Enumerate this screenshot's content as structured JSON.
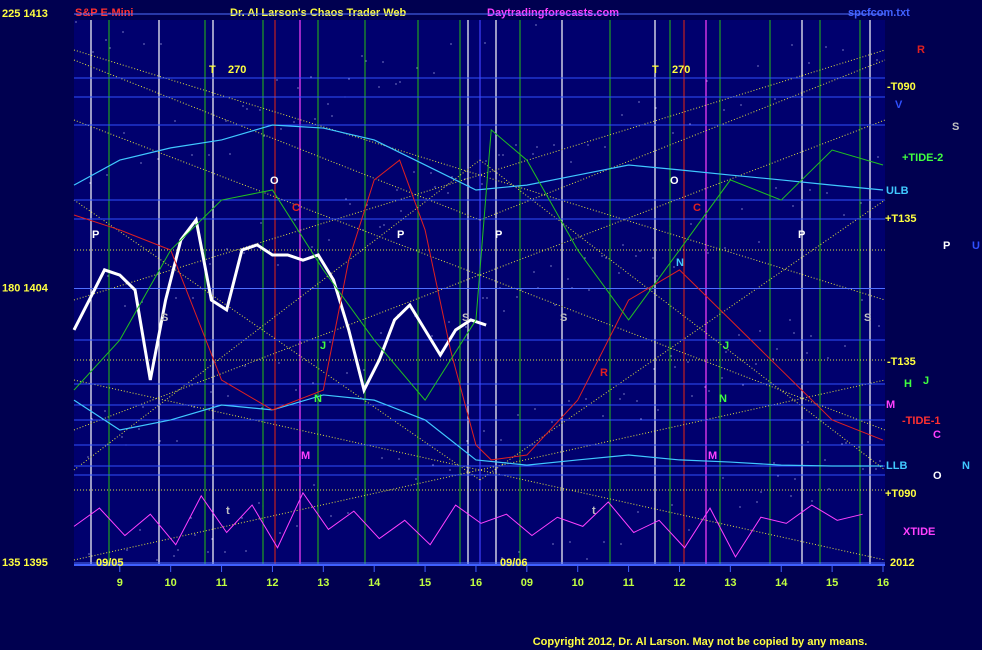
{
  "chart_data": {
    "type": "line",
    "title": "Dr. Al Larson's Chaos Trader Web",
    "subtitle": "S&P E-Mini",
    "site": "Daytradingforecasts.com",
    "file": "spcfcom.txt",
    "copyright": "Copyright 2012, Dr. Al Larson. May not be copied by any means.",
    "date_labels": [
      "09/05",
      "09/06",
      "2012"
    ],
    "xlim": [
      8.1,
      24.0
    ],
    "xticks": [
      9,
      10,
      11,
      12,
      13,
      14,
      15,
      16,
      {
        "value": 17,
        "label": "09"
      },
      {
        "value": 18,
        "label": "10"
      },
      {
        "value": 19,
        "label": "11"
      },
      {
        "value": 20,
        "label": "12"
      },
      {
        "value": 21,
        "label": "13"
      },
      {
        "value": 22,
        "label": "14"
      },
      {
        "value": 23,
        "label": "15"
      },
      {
        "value": 24,
        "label": "16"
      }
    ],
    "ylim": [
      1395,
      1413
    ],
    "yticks": [
      {
        "value": 1413,
        "label": "225 1413"
      },
      {
        "value": 1404,
        "label": "180 1404"
      },
      {
        "value": 1395,
        "label": "135 1395"
      }
    ],
    "grid": true,
    "series": [
      {
        "color": "#ffffff",
        "width": 3,
        "x": [
          8.1,
          8.4,
          8.7,
          9.0,
          9.3,
          9.6,
          9.9,
          10.2,
          10.5,
          10.8,
          11.1,
          11.4,
          11.7,
          12.0,
          12.3,
          12.6,
          12.9,
          13.2,
          13.5,
          13.8,
          14.1,
          14.4,
          14.7,
          15.0,
          15.3,
          15.6,
          15.9,
          16.2
        ],
        "values": [
          1402.64,
          1403.62,
          1404.61,
          1404.44,
          1403.95,
          1401.0,
          1403.62,
          1405.59,
          1406.25,
          1403.62,
          1403.3,
          1405.26,
          1405.43,
          1405.1,
          1405.1,
          1404.93,
          1405.1,
          1404.28,
          1402.64,
          1400.67,
          1401.66,
          1402.97,
          1403.46,
          1402.64,
          1401.82,
          1402.64,
          1402.97,
          1402.8
        ]
      },
      {
        "color": "#40c8ff",
        "width": 1.2,
        "x": [
          8.1,
          9,
          10,
          11,
          12,
          13,
          14,
          15,
          16,
          17,
          18,
          19,
          20,
          21,
          22,
          23,
          24
        ],
        "values": [
          1407.39,
          1408.21,
          1408.61,
          1408.87,
          1409.36,
          1409.26,
          1408.87,
          1408.05,
          1407.23,
          1407.39,
          1407.72,
          1408.05,
          1407.89,
          1407.72,
          1407.56,
          1407.39,
          1407.23
        ]
      },
      {
        "color": "#40c8ff",
        "width": 1.2,
        "x": [
          8.1,
          9,
          10,
          11,
          12,
          13,
          14,
          15,
          16,
          17,
          18,
          19,
          20,
          21,
          22,
          23,
          24
        ],
        "values": [
          1400.34,
          1399.36,
          1399.69,
          1400.18,
          1400.02,
          1400.51,
          1400.34,
          1399.69,
          1398.38,
          1398.21,
          1398.38,
          1398.54,
          1398.38,
          1398.31,
          1398.21,
          1398.18,
          1398.18
        ]
      },
      {
        "color": "#e02020",
        "width": 1,
        "x": [
          8.1,
          9,
          10,
          11,
          12,
          13,
          13.5,
          14,
          14.5,
          15,
          15.5,
          16,
          16.3,
          17,
          18,
          19,
          20,
          21,
          22,
          23,
          24
        ],
        "values": [
          1406.41,
          1405.92,
          1405.26,
          1401.0,
          1400.02,
          1400.67,
          1404.93,
          1407.56,
          1408.21,
          1405.92,
          1401.98,
          1398.87,
          1398.38,
          1398.54,
          1400.34,
          1403.62,
          1404.61,
          1402.97,
          1401.33,
          1399.69,
          1399.03
        ]
      },
      {
        "color": "#20c020",
        "width": 1,
        "x": [
          8.1,
          9,
          10,
          11,
          12,
          13,
          14,
          15,
          16,
          16.3,
          17,
          18,
          19,
          20,
          21,
          22,
          23,
          24
        ],
        "values": [
          1400.67,
          1402.31,
          1405.26,
          1406.9,
          1407.23,
          1404.61,
          1402.31,
          1400.34,
          1402.97,
          1409.2,
          1408.21,
          1405.26,
          1402.97,
          1405.26,
          1407.56,
          1406.9,
          1408.54,
          1408.05
        ]
      },
      {
        "color": "#ff40ff",
        "width": 1,
        "x": [
          8.1,
          8.6,
          9.1,
          9.6,
          10.1,
          10.6,
          11.1,
          11.6,
          12.1,
          12.6,
          13.1,
          13.6,
          14.1,
          14.6,
          15.1,
          15.6,
          16.1,
          16.6,
          17.1,
          17.6,
          18.1,
          18.6,
          19.1,
          19.6,
          20.1,
          20.6,
          21.1,
          21.6,
          22.1,
          22.6,
          23.1,
          23.6
        ],
        "values": [
          1396.2,
          1396.8,
          1395.9,
          1396.6,
          1395.6,
          1397.2,
          1396.0,
          1396.9,
          1395.5,
          1397.3,
          1396.1,
          1396.7,
          1395.8,
          1396.4,
          1395.6,
          1396.9,
          1396.3,
          1396.6,
          1395.9,
          1396.5,
          1396.2,
          1397.0,
          1396.0,
          1396.4,
          1395.5,
          1396.8,
          1395.2,
          1396.5,
          1396.3,
          1396.9,
          1396.4,
          1396.6
        ]
      }
    ],
    "right_labels": [
      "R",
      "-T090",
      "V",
      "S",
      "+TIDE-2",
      "ULB",
      "+T135",
      "P",
      "U",
      "-T135",
      "H",
      "J",
      "M",
      "-TIDE-1",
      "C",
      "LLB",
      "O",
      "N",
      "+T090",
      "XTIDE"
    ],
    "annotations": [
      "T",
      "270",
      "T",
      "270",
      "O",
      "O",
      "C",
      "C",
      "P",
      "P",
      "P",
      "P",
      "N",
      "S",
      "S",
      "S",
      "S",
      "R",
      "J",
      "J",
      "M",
      "M",
      "N",
      "N",
      "t",
      "t"
    ]
  }
}
